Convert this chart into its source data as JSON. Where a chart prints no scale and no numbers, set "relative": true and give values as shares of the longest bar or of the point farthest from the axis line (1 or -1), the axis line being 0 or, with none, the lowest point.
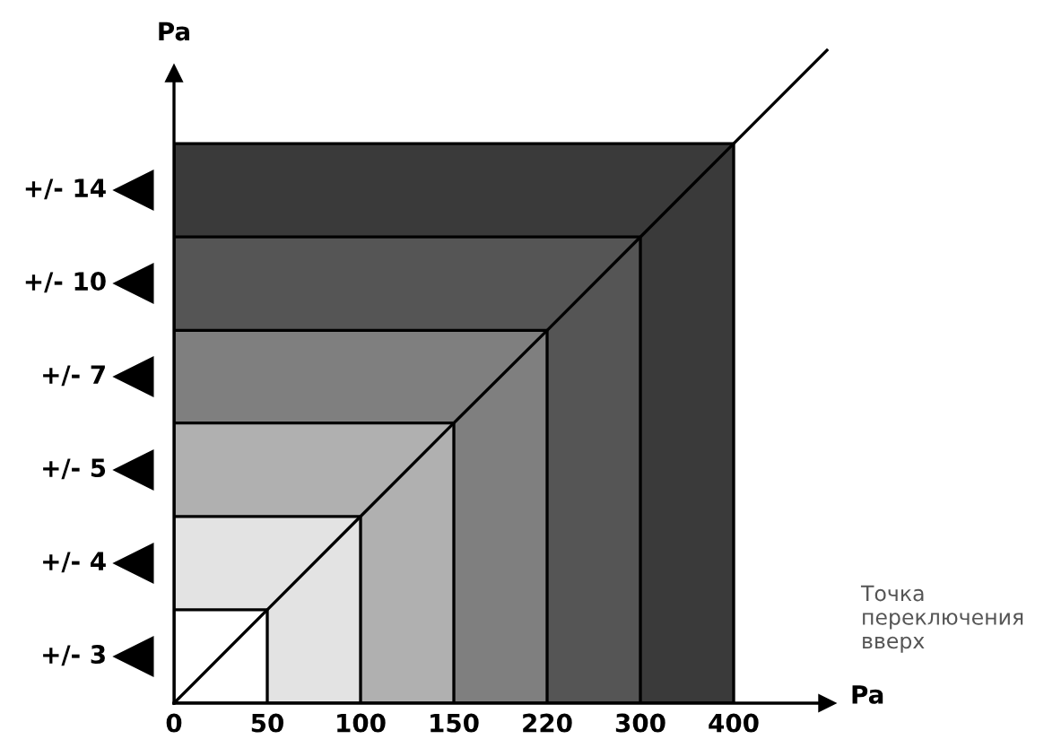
{
  "chart_data": {
    "type": "area",
    "relative": true,
    "xlabel": "Pa",
    "ylabel": "Pa",
    "categories": [
      "0",
      "50",
      "100",
      "150",
      "220",
      "300",
      "400",
      null
    ],
    "series": [
      {
        "color": "#3a3a3a",
        "values": [
          0.857,
          0.857,
          0.857,
          0.857,
          0.857,
          0.857,
          0.857,
          null
        ]
      },
      {
        "color": "#555555",
        "values": [
          0.714,
          0.714,
          0.714,
          0.714,
          0.714,
          0.714,
          null,
          null
        ]
      },
      {
        "color": "#7f7f7f",
        "values": [
          0.571,
          0.571,
          0.571,
          0.571,
          0.571,
          null,
          null,
          null
        ]
      },
      {
        "color": "#b0b0b0",
        "values": [
          0.429,
          0.429,
          0.429,
          0.429,
          null,
          null,
          null,
          null
        ]
      },
      {
        "color": "#e3e3e3",
        "values": [
          0.286,
          0.286,
          0.286,
          null,
          null,
          null,
          null,
          null
        ]
      },
      {
        "color": "#ffffff",
        "values": [
          0.143,
          0.143,
          null,
          null,
          null,
          null,
          null,
          null
        ]
      },
      {
        "type": "line",
        "color": "#000000",
        "values": [
          0,
          0.143,
          0.286,
          0.429,
          0.571,
          0.714,
          0.857,
          1
        ]
      }
    ],
    "annotations": [
      "+/- 14",
      "+/- 10",
      "+/- 7",
      "+/- 5",
      "+/- 4",
      "+/- 3",
      "Точка переключения вверх"
    ]
  }
}
